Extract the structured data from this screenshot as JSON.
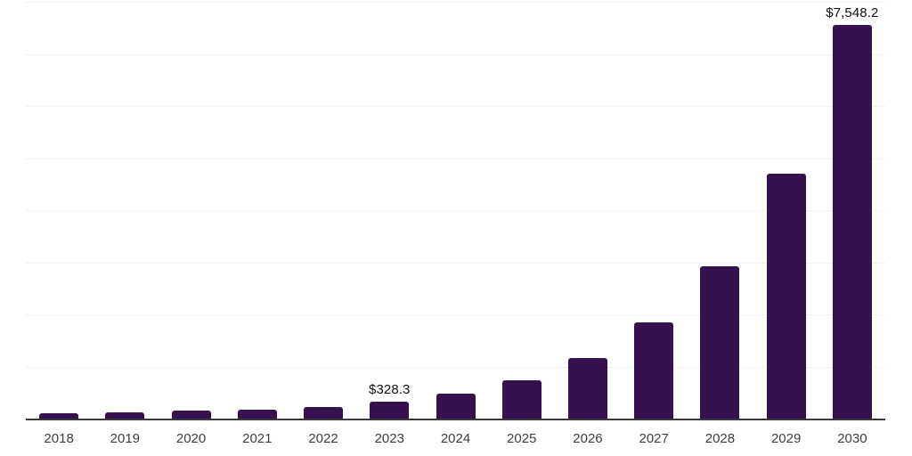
{
  "chart_data": {
    "type": "bar",
    "title": "",
    "xlabel": "",
    "ylabel": "",
    "categories": [
      "2018",
      "2019",
      "2020",
      "2021",
      "2022",
      "2023",
      "2024",
      "2025",
      "2026",
      "2027",
      "2028",
      "2029",
      "2030"
    ],
    "values": [
      97,
      120,
      148,
      172,
      225,
      328.3,
      485,
      732,
      1155,
      1840,
      2925,
      4700,
      7548.2
    ],
    "labeled_points": [
      {
        "category": "2023",
        "label": "$328.3"
      },
      {
        "category": "2030",
        "label": "$7,548.2"
      }
    ],
    "ylim": [
      0,
      8000
    ],
    "gridline_step": 1000,
    "grid": true,
    "legend": false,
    "y_axis_labels_visible": false,
    "colors": {
      "bar": "#36114f",
      "axis_line": "#3a3a3a",
      "gridline": "#f1f1f3",
      "tick_label": "#3d3d3d",
      "value_label": "#101010",
      "background": "#ffffff"
    }
  }
}
